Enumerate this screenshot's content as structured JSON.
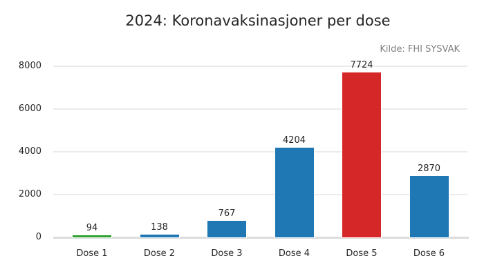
{
  "chart_data": {
    "type": "bar",
    "title": "2024: Koronavaksinasjoner per dose",
    "source_note": "Kilde: FHI SYSVAK",
    "xlabel": "",
    "ylabel": "",
    "categories": [
      "Dose 1",
      "Dose 2",
      "Dose 3",
      "Dose 4",
      "Dose 5",
      "Dose 6"
    ],
    "values": [
      94,
      138,
      767,
      4204,
      7724,
      2870
    ],
    "colors": [
      "#2ca02c",
      "#1f77b4",
      "#1f77b4",
      "#1f77b4",
      "#d62728",
      "#1f77b4"
    ],
    "ylim": [
      0,
      8000
    ],
    "yticks": [
      0,
      2000,
      4000,
      6000,
      8000
    ],
    "grid": true,
    "legend": null
  }
}
